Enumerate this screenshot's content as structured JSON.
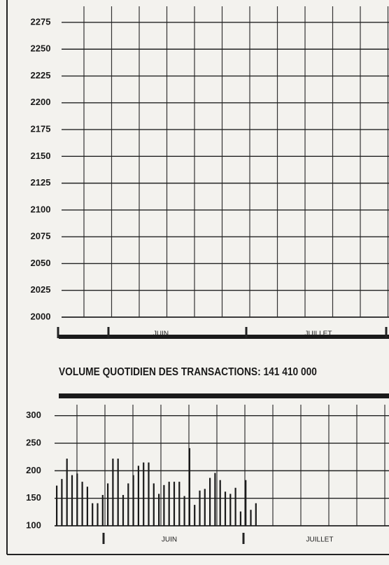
{
  "chart_data": [
    {
      "type": "line",
      "categories": [
        "JUIN",
        "JUILLET"
      ],
      "ylim": [
        2000,
        2290
      ],
      "yticks": [
        2000,
        2025,
        2050,
        2075,
        2100,
        2125,
        2150,
        2175,
        2200,
        2225,
        2250,
        2275
      ],
      "grid": true,
      "color": "#1a1a1a"
    },
    {
      "type": "bar",
      "title": "VOLUME QUOTIDIEN DES TRANSACTIONS: 141 410 000",
      "categories": [
        null,
        null,
        null,
        null,
        null,
        null,
        null,
        null,
        null,
        null,
        null,
        null,
        null,
        null,
        null,
        null,
        null,
        null,
        null,
        null,
        null,
        null,
        null,
        null,
        null,
        null,
        null,
        null,
        null,
        null,
        null,
        null,
        null,
        null,
        null,
        null,
        null,
        null,
        null,
        null
      ],
      "month_labels": [
        "JUIN",
        "JUILLET"
      ],
      "values": [
        173,
        185,
        222,
        192,
        195,
        180,
        171,
        141,
        141,
        156,
        177,
        222,
        222,
        156,
        177,
        192,
        209,
        215,
        215,
        177,
        158,
        174,
        180,
        180,
        180,
        154,
        241,
        138,
        164,
        167,
        187,
        196,
        183,
        162,
        158,
        169,
        126,
        183,
        129,
        141
      ],
      "ylim": [
        100,
        320
      ],
      "yticks": [
        100,
        150,
        200,
        250,
        300
      ],
      "grid": true,
      "color": "#1a1a1a"
    }
  ]
}
